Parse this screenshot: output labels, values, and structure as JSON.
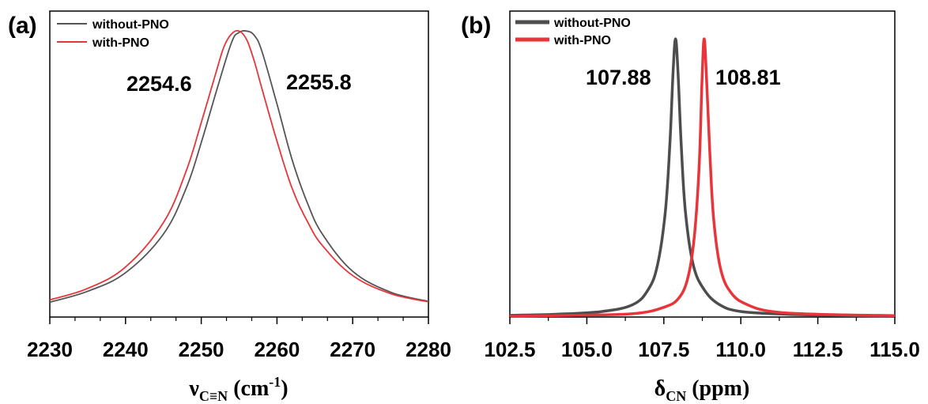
{
  "chart_data": [
    {
      "type": "line",
      "panel_label": "(a)",
      "xlabel": "ν",
      "xlabel_sub": "C≡N",
      "xlabel_unit_pre": " (cm",
      "xlabel_sup": "-1",
      "xlabel_unit_post": ")",
      "ylabel": "",
      "xlim": [
        2230,
        2280
      ],
      "x_ticks": [
        "2230",
        "2240",
        "2250",
        "2260",
        "2270",
        "2280"
      ],
      "x_tick_values": [
        2230,
        2240,
        2250,
        2260,
        2270,
        2280
      ],
      "ylim": [
        0,
        1.07
      ],
      "legend_position": "top-left",
      "series": [
        {
          "name": "without-PNO",
          "color": "#555555",
          "x": [
            2230,
            2235,
            2240,
            2245,
            2248,
            2250,
            2252,
            2254,
            2255,
            2256,
            2257,
            2258,
            2260,
            2262,
            2264,
            2266,
            2270,
            2275,
            2280
          ],
          "y": [
            0.052,
            0.09,
            0.155,
            0.29,
            0.45,
            0.61,
            0.79,
            0.96,
            0.995,
            1.0,
            0.985,
            0.93,
            0.745,
            0.55,
            0.4,
            0.29,
            0.16,
            0.087,
            0.055
          ]
        },
        {
          "name": "with-PNO",
          "color": "#e8353a",
          "x": [
            2230,
            2235,
            2240,
            2245,
            2248,
            2250,
            2252,
            2253,
            2254,
            2255,
            2256,
            2257,
            2258,
            2260,
            2262,
            2264,
            2266,
            2270,
            2275,
            2280
          ],
          "y": [
            0.06,
            0.1,
            0.175,
            0.33,
            0.51,
            0.68,
            0.86,
            0.945,
            0.99,
            1.0,
            0.97,
            0.895,
            0.8,
            0.615,
            0.45,
            0.335,
            0.25,
            0.145,
            0.082,
            0.053
          ]
        }
      ],
      "annotations": [
        {
          "text": "2254.6",
          "x": 2244.5,
          "y": 0.82
        },
        {
          "text": "2255.8",
          "x": 2266.0,
          "y": 0.84
        }
      ]
    },
    {
      "type": "line",
      "panel_label": "(b)",
      "xlabel": "δ",
      "xlabel_sub": "CN",
      "xlabel_unit_pre": " (ppm)",
      "xlabel_sup": "",
      "xlabel_unit_post": "",
      "ylabel": "",
      "xlim": [
        102.5,
        115.0
      ],
      "x_ticks": [
        "102.5",
        "105.0",
        "107.5",
        "110.0",
        "112.5",
        "115.0"
      ],
      "x_tick_values": [
        102.5,
        105.0,
        107.5,
        110.0,
        112.5,
        115.0
      ],
      "ylim": [
        0,
        1.1
      ],
      "legend_position": "top-left",
      "series": [
        {
          "name": "without-PNO",
          "color": "#4d4d4d",
          "x": [
            102.5,
            104.0,
            105.5,
            106.5,
            107.0,
            107.3,
            107.55,
            107.7,
            107.8,
            107.88,
            107.96,
            108.06,
            108.2,
            108.45,
            108.8,
            109.3,
            110.0,
            111.5,
            113.0,
            115.0
          ],
          "y": [
            0.006,
            0.01,
            0.02,
            0.045,
            0.1,
            0.19,
            0.38,
            0.63,
            0.88,
            1.0,
            0.88,
            0.63,
            0.38,
            0.19,
            0.1,
            0.045,
            0.02,
            0.01,
            0.006,
            0.003
          ]
        },
        {
          "name": "with-PNO",
          "color": "#e8353a",
          "x": [
            102.5,
            104.5,
            106.5,
            107.5,
            108.0,
            108.3,
            108.5,
            108.65,
            108.74,
            108.81,
            108.89,
            108.99,
            109.12,
            109.35,
            109.7,
            110.2,
            111.0,
            112.5,
            115.0
          ],
          "y": [
            0.003,
            0.006,
            0.012,
            0.035,
            0.07,
            0.15,
            0.3,
            0.55,
            0.85,
            1.0,
            0.85,
            0.6,
            0.35,
            0.17,
            0.085,
            0.045,
            0.02,
            0.01,
            0.005
          ]
        }
      ],
      "annotations": [
        {
          "text": "107.88",
          "x": 105.9,
          "y": 0.84
        },
        {
          "text": "108.81",
          "x": 110.2,
          "y": 0.84
        }
      ]
    }
  ]
}
